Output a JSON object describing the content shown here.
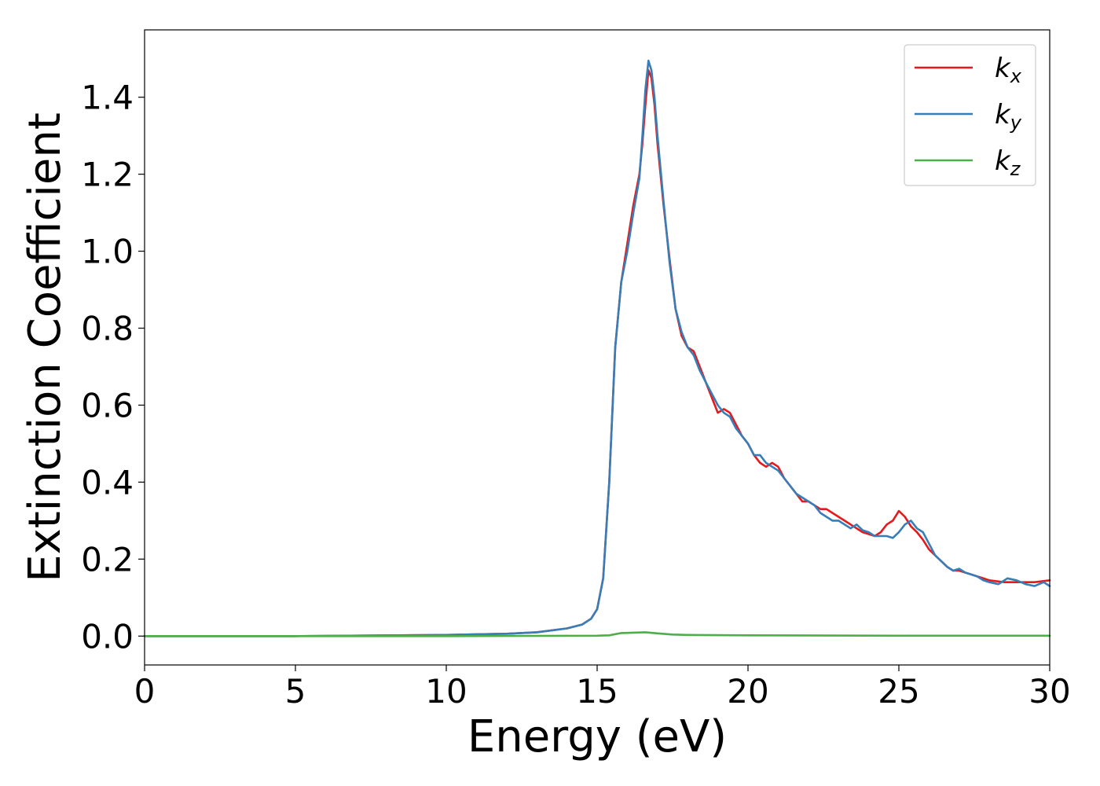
{
  "chart_data": {
    "type": "line",
    "title": "",
    "xlabel": "Energy (eV)",
    "ylabel": "Extinction Coefficient",
    "xlim": [
      0,
      30
    ],
    "ylim": [
      -0.075,
      1.575
    ],
    "xticks": [
      0,
      5,
      10,
      15,
      20,
      25,
      30
    ],
    "xtick_labels": [
      "0",
      "5",
      "10",
      "15",
      "20",
      "25",
      "30"
    ],
    "yticks": [
      0.0,
      0.2,
      0.4,
      0.6,
      0.8,
      1.0,
      1.2,
      1.4
    ],
    "ytick_labels": [
      "0.0",
      "0.2",
      "0.4",
      "0.6",
      "0.8",
      "1.0",
      "1.2",
      "1.4"
    ],
    "grid": false,
    "legend_position": "top-right",
    "series": [
      {
        "name": "k",
        "subscript": "x",
        "color": "#e41a1c",
        "points": [
          [
            0,
            0.0
          ],
          [
            5,
            0.0
          ],
          [
            10,
            0.003
          ],
          [
            12,
            0.006
          ],
          [
            13,
            0.01
          ],
          [
            14,
            0.02
          ],
          [
            14.5,
            0.03
          ],
          [
            14.8,
            0.045
          ],
          [
            15.0,
            0.07
          ],
          [
            15.2,
            0.15
          ],
          [
            15.4,
            0.4
          ],
          [
            15.6,
            0.75
          ],
          [
            15.8,
            0.92
          ],
          [
            16.0,
            1.02
          ],
          [
            16.2,
            1.12
          ],
          [
            16.4,
            1.2
          ],
          [
            16.5,
            1.28
          ],
          [
            16.6,
            1.38
          ],
          [
            16.7,
            1.47
          ],
          [
            16.8,
            1.45
          ],
          [
            16.9,
            1.38
          ],
          [
            17.0,
            1.28
          ],
          [
            17.2,
            1.12
          ],
          [
            17.4,
            0.98
          ],
          [
            17.6,
            0.85
          ],
          [
            17.8,
            0.78
          ],
          [
            18.0,
            0.75
          ],
          [
            18.2,
            0.74
          ],
          [
            18.4,
            0.7
          ],
          [
            18.6,
            0.66
          ],
          [
            18.8,
            0.62
          ],
          [
            19.0,
            0.58
          ],
          [
            19.2,
            0.59
          ],
          [
            19.4,
            0.58
          ],
          [
            19.6,
            0.55
          ],
          [
            19.8,
            0.52
          ],
          [
            20.0,
            0.5
          ],
          [
            20.2,
            0.47
          ],
          [
            20.4,
            0.45
          ],
          [
            20.6,
            0.44
          ],
          [
            20.8,
            0.45
          ],
          [
            21.0,
            0.44
          ],
          [
            21.2,
            0.41
          ],
          [
            21.4,
            0.39
          ],
          [
            21.6,
            0.37
          ],
          [
            21.8,
            0.35
          ],
          [
            22.0,
            0.35
          ],
          [
            22.2,
            0.34
          ],
          [
            22.4,
            0.33
          ],
          [
            22.6,
            0.33
          ],
          [
            22.8,
            0.32
          ],
          [
            23.0,
            0.31
          ],
          [
            23.2,
            0.3
          ],
          [
            23.4,
            0.29
          ],
          [
            23.6,
            0.28
          ],
          [
            23.8,
            0.27
          ],
          [
            24.0,
            0.265
          ],
          [
            24.2,
            0.26
          ],
          [
            24.4,
            0.27
          ],
          [
            24.6,
            0.29
          ],
          [
            24.8,
            0.3
          ],
          [
            25.0,
            0.325
          ],
          [
            25.2,
            0.31
          ],
          [
            25.4,
            0.285
          ],
          [
            25.6,
            0.27
          ],
          [
            25.8,
            0.25
          ],
          [
            26.0,
            0.225
          ],
          [
            26.2,
            0.21
          ],
          [
            26.4,
            0.195
          ],
          [
            26.6,
            0.18
          ],
          [
            26.8,
            0.17
          ],
          [
            27.0,
            0.17
          ],
          [
            27.2,
            0.165
          ],
          [
            27.4,
            0.16
          ],
          [
            27.6,
            0.155
          ],
          [
            27.8,
            0.15
          ],
          [
            28.0,
            0.145
          ],
          [
            28.5,
            0.14
          ],
          [
            29.0,
            0.14
          ],
          [
            29.5,
            0.14
          ],
          [
            30.0,
            0.145
          ]
        ]
      },
      {
        "name": "k",
        "subscript": "y",
        "color": "#377eb8",
        "points": [
          [
            0,
            0.0
          ],
          [
            5,
            0.0
          ],
          [
            10,
            0.003
          ],
          [
            12,
            0.006
          ],
          [
            13,
            0.01
          ],
          [
            14,
            0.02
          ],
          [
            14.5,
            0.03
          ],
          [
            14.8,
            0.045
          ],
          [
            15.0,
            0.07
          ],
          [
            15.2,
            0.15
          ],
          [
            15.4,
            0.4
          ],
          [
            15.6,
            0.75
          ],
          [
            15.8,
            0.92
          ],
          [
            16.0,
            1.0
          ],
          [
            16.2,
            1.1
          ],
          [
            16.4,
            1.19
          ],
          [
            16.5,
            1.3
          ],
          [
            16.6,
            1.42
          ],
          [
            16.7,
            1.495
          ],
          [
            16.8,
            1.47
          ],
          [
            16.9,
            1.4
          ],
          [
            17.0,
            1.3
          ],
          [
            17.2,
            1.13
          ],
          [
            17.4,
            0.97
          ],
          [
            17.6,
            0.85
          ],
          [
            17.8,
            0.79
          ],
          [
            18.0,
            0.75
          ],
          [
            18.2,
            0.73
          ],
          [
            18.4,
            0.69
          ],
          [
            18.6,
            0.66
          ],
          [
            18.8,
            0.63
          ],
          [
            19.0,
            0.6
          ],
          [
            19.2,
            0.58
          ],
          [
            19.4,
            0.57
          ],
          [
            19.6,
            0.54
          ],
          [
            19.8,
            0.52
          ],
          [
            20.0,
            0.5
          ],
          [
            20.2,
            0.47
          ],
          [
            20.4,
            0.47
          ],
          [
            20.6,
            0.45
          ],
          [
            20.8,
            0.44
          ],
          [
            21.0,
            0.43
          ],
          [
            21.2,
            0.41
          ],
          [
            21.4,
            0.39
          ],
          [
            21.6,
            0.37
          ],
          [
            21.8,
            0.36
          ],
          [
            22.0,
            0.35
          ],
          [
            22.2,
            0.34
          ],
          [
            22.4,
            0.32
          ],
          [
            22.6,
            0.31
          ],
          [
            22.8,
            0.3
          ],
          [
            23.0,
            0.3
          ],
          [
            23.2,
            0.29
          ],
          [
            23.4,
            0.28
          ],
          [
            23.6,
            0.29
          ],
          [
            23.8,
            0.275
          ],
          [
            24.0,
            0.27
          ],
          [
            24.2,
            0.26
          ],
          [
            24.4,
            0.26
          ],
          [
            24.6,
            0.26
          ],
          [
            24.8,
            0.255
          ],
          [
            25.0,
            0.27
          ],
          [
            25.2,
            0.29
          ],
          [
            25.4,
            0.3
          ],
          [
            25.6,
            0.28
          ],
          [
            25.8,
            0.27
          ],
          [
            26.0,
            0.24
          ],
          [
            26.2,
            0.21
          ],
          [
            26.4,
            0.195
          ],
          [
            26.6,
            0.18
          ],
          [
            26.8,
            0.17
          ],
          [
            27.0,
            0.175
          ],
          [
            27.2,
            0.165
          ],
          [
            27.4,
            0.16
          ],
          [
            27.6,
            0.155
          ],
          [
            27.8,
            0.145
          ],
          [
            28.0,
            0.14
          ],
          [
            28.3,
            0.135
          ],
          [
            28.6,
            0.15
          ],
          [
            28.9,
            0.145
          ],
          [
            29.2,
            0.135
          ],
          [
            29.5,
            0.13
          ],
          [
            29.8,
            0.14
          ],
          [
            30.0,
            0.13
          ]
        ]
      },
      {
        "name": "k",
        "subscript": "z",
        "color": "#4daf4a",
        "points": [
          [
            0,
            0.0
          ],
          [
            10,
            0.0
          ],
          [
            15.0,
            0.001
          ],
          [
            15.4,
            0.002
          ],
          [
            15.8,
            0.008
          ],
          [
            16.2,
            0.009
          ],
          [
            16.6,
            0.01
          ],
          [
            17.0,
            0.007
          ],
          [
            17.5,
            0.004
          ],
          [
            18,
            0.003
          ],
          [
            20,
            0.002
          ],
          [
            25,
            0.001
          ],
          [
            30,
            0.001
          ]
        ]
      }
    ]
  }
}
